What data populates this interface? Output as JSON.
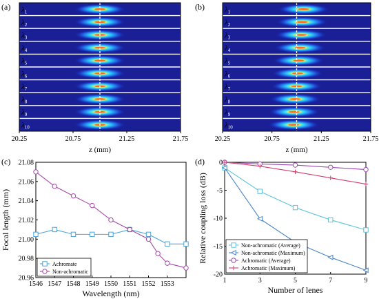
{
  "chart_data": [
    {
      "panel": "(a)",
      "type": "heatmap",
      "rows": [
        "λ1",
        "λ2",
        "λ3",
        "λ4",
        "λ5",
        "λ6",
        "λ7",
        "λ8",
        "λ9",
        "λ10"
      ],
      "row_labels": [
        "1",
        "2",
        "3",
        "4",
        "5",
        "6",
        "7",
        "8",
        "9",
        "10"
      ],
      "row_symbol": "λ",
      "xlabel": "z (mm)",
      "xticks": [
        "20.25",
        "20.75",
        "21.25",
        "21.75"
      ],
      "xlim": [
        20.25,
        21.75
      ],
      "focus_z": [
        21.0,
        21.0,
        21.0,
        21.0,
        21.0,
        21.0,
        21.0,
        21.0,
        21.0,
        21.0
      ],
      "marker_z": 21.0
    },
    {
      "panel": "(b)",
      "type": "heatmap",
      "rows": [
        "λ1",
        "λ2",
        "λ3",
        "λ4",
        "λ5",
        "λ6",
        "λ7",
        "λ8",
        "λ9",
        "λ10"
      ],
      "row_labels": [
        "1",
        "2",
        "3",
        "4",
        "5",
        "6",
        "7",
        "8",
        "9",
        "10"
      ],
      "row_symbol": "λ",
      "xlabel": "z (mm)",
      "xticks": [
        "20.25",
        "20.75",
        "21.25",
        "21.75"
      ],
      "xlim": [
        20.25,
        21.75
      ],
      "focus_z": [
        21.07,
        21.055,
        21.045,
        21.035,
        21.02,
        21.01,
        21.0,
        20.985,
        20.975,
        20.97
      ],
      "marker_z": 21.0
    },
    {
      "panel": "(c)",
      "type": "line",
      "xlabel": "Wavelength (nm)",
      "ylabel": "Focal length (mm)",
      "x": [
        1546,
        1547,
        1548,
        1549,
        1550,
        1551,
        1552,
        1553,
        1554
      ],
      "xlim": [
        1546,
        1554
      ],
      "xticks": [
        1546,
        1547,
        1548,
        1549,
        1550,
        1551,
        1552,
        1553
      ],
      "ylim": [
        20.96,
        21.08
      ],
      "yticks": [
        "20.96",
        "20.98",
        "21.00",
        "21.02",
        "21.04",
        "21.06",
        "21.08"
      ],
      "legend_position": "bottom-left",
      "series": [
        {
          "name": "Achromate",
          "color": "#4aa6d9",
          "marker": "square",
          "values": [
            21.005,
            21.01,
            21.005,
            21.005,
            21.005,
            21.01,
            21.005,
            20.995,
            20.995
          ]
        },
        {
          "name": "Non-achromatic",
          "color": "#a548a8",
          "marker": "circle",
          "values": [
            21.07,
            21.055,
            21.045,
            21.035,
            21.02,
            21.01,
            21.0,
            20.985,
            20.975,
            20.97
          ],
          "x": [
            1546,
            1547,
            1548,
            1549,
            1550,
            1551,
            1552,
            1552.5,
            1553,
            1554
          ]
        }
      ]
    },
    {
      "panel": "(d)",
      "type": "line",
      "xlabel": "Number of lenes",
      "ylabel": "Relative coupling loss (dB)",
      "x": [
        1,
        3,
        5,
        7,
        9
      ],
      "xlim": [
        1,
        9
      ],
      "xticks": [
        1,
        3,
        5,
        7,
        9
      ],
      "ylim": [
        -20,
        0
      ],
      "yticks": [
        0,
        -5,
        -10,
        -15,
        -20
      ],
      "legend_position": "bottom-left",
      "series": [
        {
          "name": "Non-achromatic (Average)",
          "color": "#5cc4da",
          "marker": "square",
          "values": [
            -1,
            -5.2,
            -8.1,
            -10.3,
            -12.1
          ]
        },
        {
          "name": "Non-achromatic (Maximum)",
          "color": "#4a84c6",
          "marker": "triangle-left",
          "values": [
            -1,
            -10.1,
            -14.3,
            -17,
            -19.3
          ]
        },
        {
          "name": "Achromatic (Average)",
          "color": "#9a4ab0",
          "marker": "circle",
          "values": [
            0,
            -0.3,
            -0.5,
            -0.9,
            -1.3
          ]
        },
        {
          "name": "Achromatic (Maximum)",
          "color": "#d23c6a",
          "marker": "plus",
          "values": [
            0,
            -0.7,
            -1.7,
            -2.8,
            -3.9
          ]
        }
      ]
    }
  ]
}
